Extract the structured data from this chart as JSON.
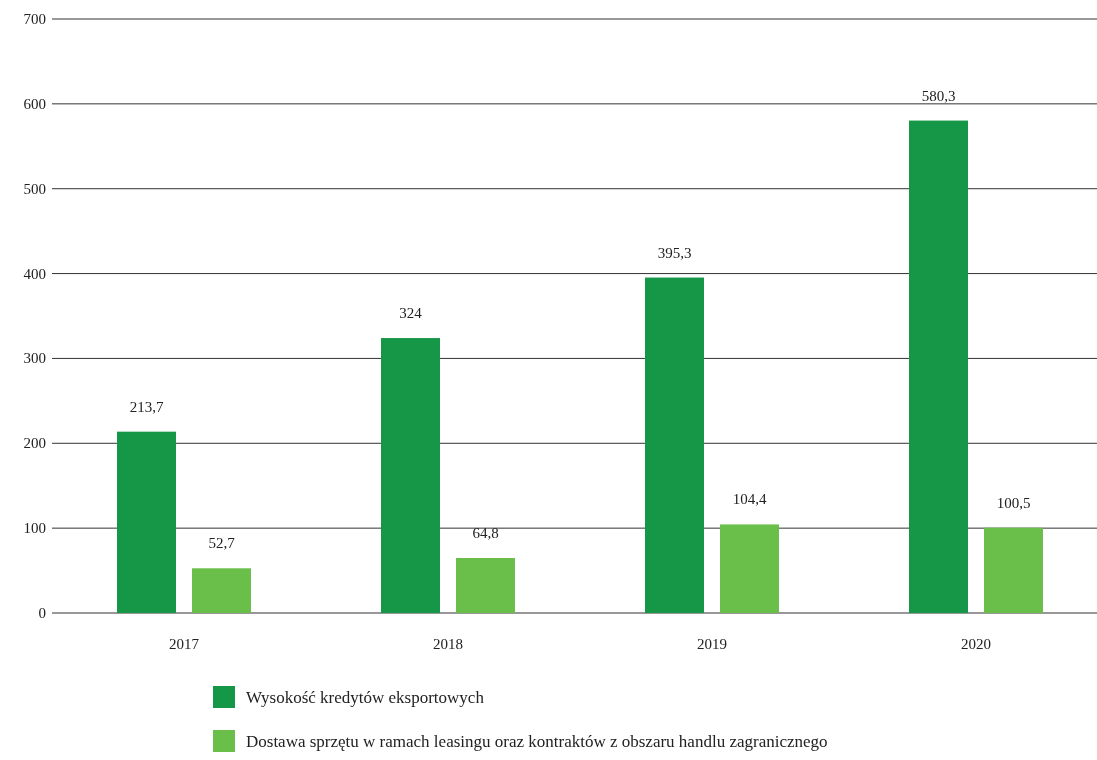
{
  "chart_data": {
    "type": "bar",
    "categories": [
      "2017",
      "2018",
      "2019",
      "2020"
    ],
    "series": [
      {
        "name": "Wysokość kredytów eksportowych",
        "color": "#169647",
        "values": [
          213.7,
          324,
          395.3,
          580.3
        ],
        "value_labels": [
          "213,7",
          "324",
          "395,3",
          "580,3"
        ]
      },
      {
        "name": "Dostawa sprzętu w ramach leasingu oraz kontraktów z obszaru handlu zagranicznego",
        "color": "#6abf4b",
        "values": [
          52.7,
          64.8,
          104.4,
          100.5
        ],
        "value_labels": [
          "52,7",
          "64,8",
          "104,4",
          "100,5"
        ]
      }
    ],
    "ylim": [
      0,
      700
    ],
    "yticks": [
      0,
      100,
      200,
      300,
      400,
      500,
      600,
      700
    ],
    "grid": "y",
    "legend": "bottom"
  }
}
